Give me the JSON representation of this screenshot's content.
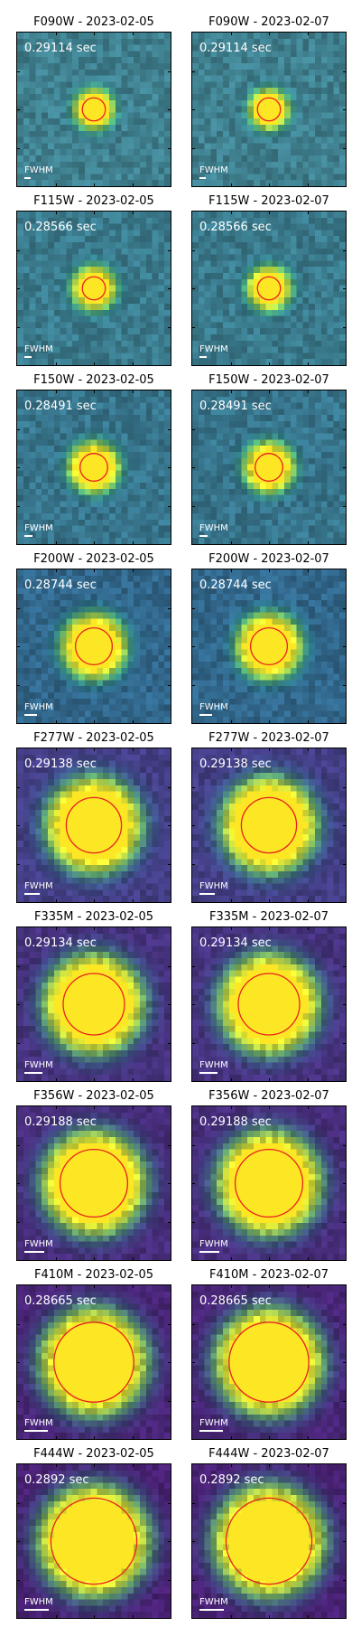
{
  "panels": [
    {
      "title": "F090W - 2023-02-05",
      "time": "0.29114 sec",
      "fwhm_label": "FWHM",
      "source_radius_frac": 0.09,
      "circle_radius_frac": 0.075,
      "background": "#3f7f8e",
      "fwhm_frac": 0.04
    },
    {
      "title": "F090W - 2023-02-07",
      "time": "0.29114 sec",
      "fwhm_label": "FWHM",
      "source_radius_frac": 0.09,
      "circle_radius_frac": 0.075,
      "background": "#3f7f8e",
      "fwhm_frac": 0.04
    },
    {
      "title": "F115W - 2023-02-05",
      "time": "0.28566 sec",
      "fwhm_label": "FWHM",
      "source_radius_frac": 0.1,
      "circle_radius_frac": 0.075,
      "background": "#3a7a8c",
      "fwhm_frac": 0.045
    },
    {
      "title": "F115W - 2023-02-07",
      "time": "0.28566 sec",
      "fwhm_label": "FWHM",
      "source_radius_frac": 0.1,
      "circle_radius_frac": 0.075,
      "background": "#3a7a8c",
      "fwhm_frac": 0.045
    },
    {
      "title": "F150W - 2023-02-05",
      "time": "0.28491 sec",
      "fwhm_label": "FWHM",
      "source_radius_frac": 0.12,
      "circle_radius_frac": 0.09,
      "background": "#37748b",
      "fwhm_frac": 0.055
    },
    {
      "title": "F150W - 2023-02-07",
      "time": "0.28491 sec",
      "fwhm_label": "FWHM",
      "source_radius_frac": 0.12,
      "circle_radius_frac": 0.09,
      "background": "#37748b",
      "fwhm_frac": 0.055
    },
    {
      "title": "F200W - 2023-02-05",
      "time": "0.28744 sec",
      "fwhm_label": "FWHM",
      "source_radius_frac": 0.16,
      "circle_radius_frac": 0.12,
      "background": "#31668a",
      "fwhm_frac": 0.08
    },
    {
      "title": "F200W - 2023-02-07",
      "time": "0.28744 sec",
      "fwhm_label": "FWHM",
      "source_radius_frac": 0.16,
      "circle_radius_frac": 0.12,
      "background": "#31668a",
      "fwhm_frac": 0.08
    },
    {
      "title": "F277W - 2023-02-05",
      "time": "0.29138 sec",
      "fwhm_label": "FWHM",
      "source_radius_frac": 0.24,
      "circle_radius_frac": 0.18,
      "background": "#433e85",
      "fwhm_frac": 0.1
    },
    {
      "title": "F277W - 2023-02-07",
      "time": "0.29138 sec",
      "fwhm_label": "FWHM",
      "source_radius_frac": 0.24,
      "circle_radius_frac": 0.18,
      "background": "#433e85",
      "fwhm_frac": 0.1
    },
    {
      "title": "F335M - 2023-02-05",
      "time": "0.29134 sec",
      "fwhm_label": "FWHM",
      "source_radius_frac": 0.25,
      "circle_radius_frac": 0.2,
      "background": "#46327e",
      "fwhm_frac": 0.12
    },
    {
      "title": "F335M - 2023-02-07",
      "time": "0.29134 sec",
      "fwhm_label": "FWHM",
      "source_radius_frac": 0.25,
      "circle_radius_frac": 0.2,
      "background": "#46327e",
      "fwhm_frac": 0.12
    },
    {
      "title": "F356W - 2023-02-05",
      "time": "0.29188 sec",
      "fwhm_label": "FWHM",
      "source_radius_frac": 0.26,
      "circle_radius_frac": 0.22,
      "background": "#472d7b",
      "fwhm_frac": 0.13
    },
    {
      "title": "F356W - 2023-02-07",
      "time": "0.29188 sec",
      "fwhm_label": "FWHM",
      "source_radius_frac": 0.26,
      "circle_radius_frac": 0.22,
      "background": "#472d7b",
      "fwhm_frac": 0.13
    },
    {
      "title": "F410M - 2023-02-05",
      "time": "0.28665 sec",
      "fwhm_label": "FWHM",
      "source_radius_frac": 0.27,
      "circle_radius_frac": 0.26,
      "background": "#482576",
      "fwhm_frac": 0.15
    },
    {
      "title": "F410M - 2023-02-07",
      "time": "0.28665 sec",
      "fwhm_label": "FWHM",
      "source_radius_frac": 0.27,
      "circle_radius_frac": 0.26,
      "background": "#482576",
      "fwhm_frac": 0.15
    },
    {
      "title": "F444W - 2023-02-05",
      "time": "0.2892 sec",
      "fwhm_label": "FWHM",
      "source_radius_frac": 0.28,
      "circle_radius_frac": 0.28,
      "background": "#482173",
      "fwhm_frac": 0.16
    },
    {
      "title": "F444W - 2023-02-07",
      "time": "0.2892 sec",
      "fwhm_label": "FWHM",
      "source_radius_frac": 0.28,
      "circle_radius_frac": 0.28,
      "background": "#482173",
      "fwhm_frac": 0.16
    }
  ],
  "colors": {
    "circle": "#e8211e",
    "source": "#fde725",
    "label": "#ffffff"
  }
}
